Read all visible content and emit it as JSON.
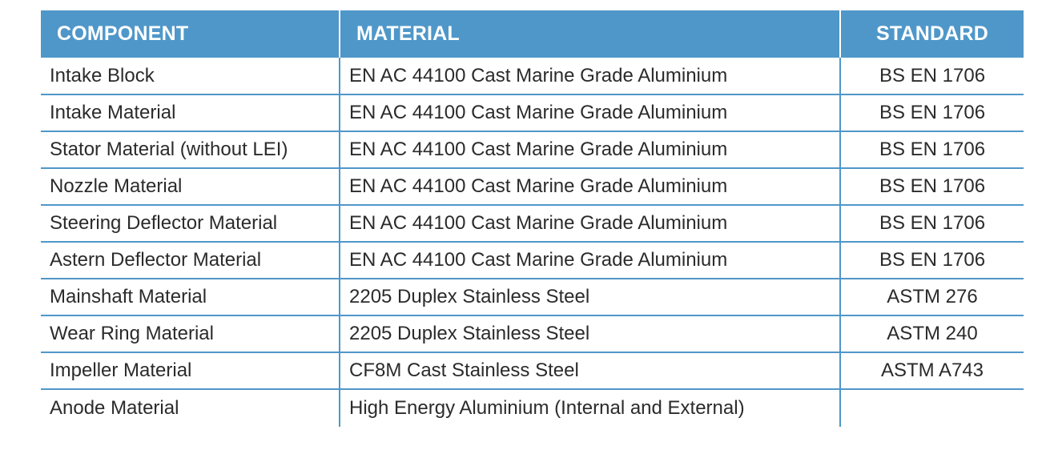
{
  "table": {
    "headers": {
      "component": "COMPONENT",
      "material": "MATERIAL",
      "standard": "STANDARD"
    },
    "rows": [
      {
        "component": "Intake Block",
        "material": "EN AC 44100 Cast Marine Grade Aluminium",
        "standard": "BS EN 1706"
      },
      {
        "component": "Intake Material",
        "material": "EN AC 44100 Cast Marine Grade Aluminium",
        "standard": "BS EN 1706"
      },
      {
        "component": "Stator Material (without LEI)",
        "material": "EN AC 44100 Cast Marine Grade Aluminium",
        "standard": "BS EN 1706"
      },
      {
        "component": "Nozzle Material",
        "material": "EN AC 44100 Cast Marine Grade Aluminium",
        "standard": "BS EN 1706"
      },
      {
        "component": "Steering Deflector Material",
        "material": "EN AC 44100 Cast Marine Grade Aluminium",
        "standard": "BS EN 1706"
      },
      {
        "component": "Astern Deflector Material",
        "material": "EN AC 44100 Cast Marine Grade Aluminium",
        "standard": "BS EN 1706"
      },
      {
        "component": "Mainshaft Material",
        "material": "2205 Duplex Stainless Steel",
        "standard": "ASTM 276"
      },
      {
        "component": "Wear Ring Material",
        "material": "2205 Duplex Stainless Steel",
        "standard": "ASTM 240"
      },
      {
        "component": "Impeller Material",
        "material": "CF8M Cast Stainless Steel",
        "standard": "ASTM A743"
      },
      {
        "component": "Anode Material",
        "material": "High Energy Aluminium (Internal and External)",
        "standard": ""
      }
    ]
  },
  "colors": {
    "header_background": "#4f97c9",
    "header_text": "#ffffff",
    "rule": "#4f97c9",
    "body_text": "#2b2b2b"
  }
}
